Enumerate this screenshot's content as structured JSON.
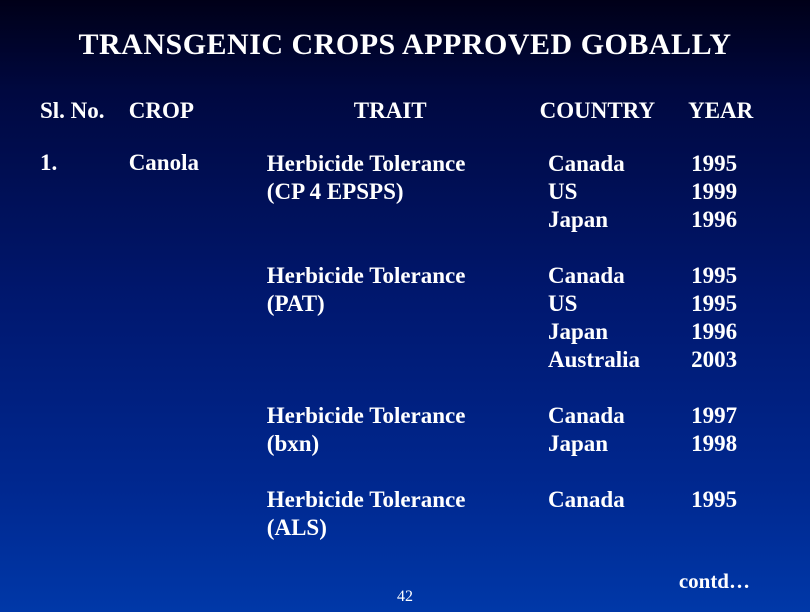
{
  "title": "TRANSGENIC CROPS APPROVED GOBALLY",
  "headers": {
    "slno": "Sl. No.",
    "crop": "CROP",
    "trait": "TRAIT",
    "country": "COUNTRY",
    "year": "YEAR"
  },
  "slno": "1.",
  "crop": "Canola",
  "groups": [
    {
      "trait1": "Herbicide Tolerance",
      "trait2": "(CP 4 EPSPS)",
      "countries": [
        "Canada",
        "US",
        "Japan"
      ],
      "years": [
        "1995",
        "1999",
        "1996"
      ]
    },
    {
      "trait1": "Herbicide Tolerance",
      "trait2": "(PAT)",
      "countries": [
        "Canada",
        "US",
        "Japan",
        "Australia"
      ],
      "years": [
        "1995",
        "1995",
        "1996",
        "2003"
      ]
    },
    {
      "trait1": "Herbicide Tolerance",
      "trait2": "(bxn)",
      "countries": [
        "Canada",
        "Japan"
      ],
      "years": [
        "1997",
        "1998"
      ]
    },
    {
      "trait1": "Herbicide Tolerance",
      "trait2": "(ALS)",
      "countries": [
        "Canada"
      ],
      "years": [
        "1995"
      ]
    }
  ],
  "contd": "contd…",
  "pagenum": "42",
  "styles": {
    "background_gradient": [
      "#000018",
      "#000840",
      "#001870",
      "#002890",
      "#0038a8"
    ],
    "text_color": "#ffffff",
    "font_family": "Times New Roman",
    "title_fontsize": 30,
    "body_fontsize": 23,
    "title_weight": "bold",
    "body_weight": "bold"
  }
}
